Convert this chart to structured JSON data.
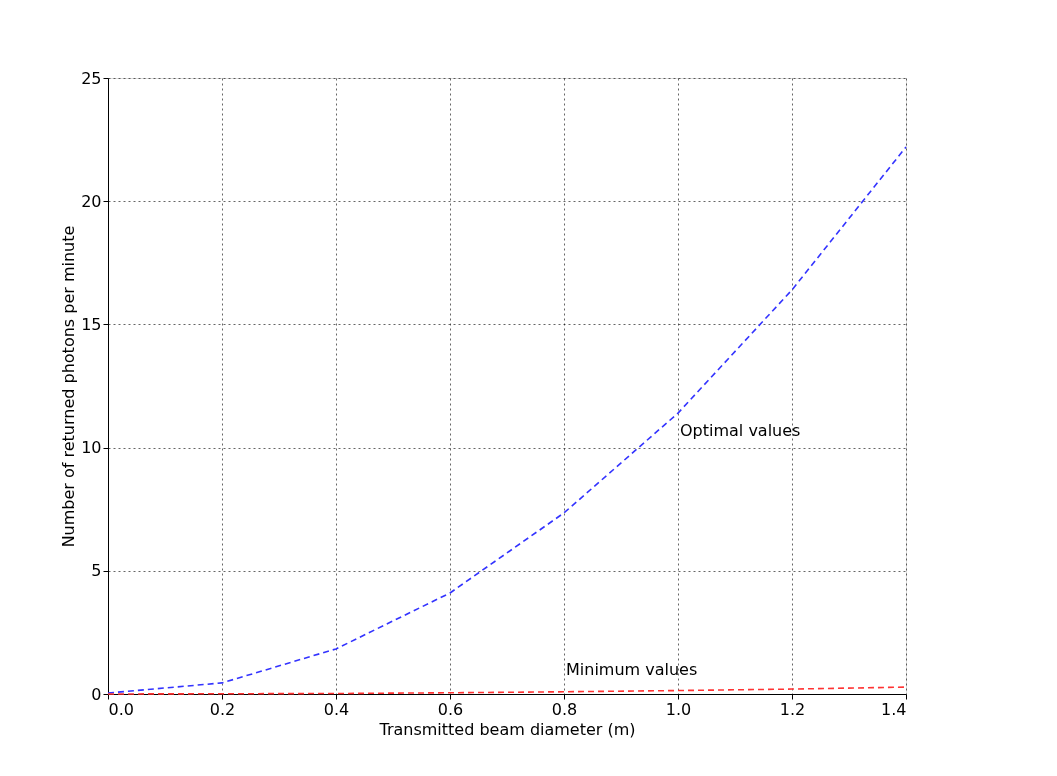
{
  "chart_data": {
    "type": "line",
    "xlabel": "Transmitted beam diameter (m)",
    "ylabel": "Number of returned photons per minute",
    "x": [
      0.0,
      0.2,
      0.4,
      0.6,
      0.8,
      1.0,
      1.2,
      1.4
    ],
    "series": [
      {
        "name": "Optimal values",
        "color": "#3333ff",
        "values": [
          0.04,
          0.45,
          1.83,
          4.1,
          7.35,
          11.4,
          16.4,
          22.2
        ]
      },
      {
        "name": "Minimum values",
        "color": "#ff3333",
        "values": [
          0.0,
          0.01,
          0.02,
          0.05,
          0.09,
          0.14,
          0.2,
          0.28
        ]
      }
    ],
    "xlim": [
      0.0,
      1.4
    ],
    "xticks": [
      {
        "value": 0.0,
        "label": "0.0"
      },
      0.2,
      0.4,
      0.6,
      0.8,
      {
        "value": 1.0,
        "label": "1.0"
      },
      1.2,
      1.4
    ],
    "ylim": [
      0,
      25
    ],
    "yticks": [
      0,
      5,
      10,
      15,
      20,
      25
    ],
    "grid": true,
    "line_style": "dashed",
    "marker": "none"
  }
}
